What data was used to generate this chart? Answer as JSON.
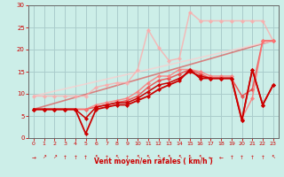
{
  "bg_color": "#cceee8",
  "grid_color": "#aacccc",
  "xlabel": "Vent moyen/en rafales ( km/h )",
  "xlabel_color": "#cc0000",
  "tick_color": "#cc0000",
  "axis_color": "#888888",
  "xlim": [
    -0.5,
    23.5
  ],
  "ylim": [
    0,
    30
  ],
  "yticks": [
    0,
    5,
    10,
    15,
    20,
    25,
    30
  ],
  "xticks": [
    0,
    1,
    2,
    3,
    4,
    5,
    6,
    7,
    8,
    9,
    10,
    11,
    12,
    13,
    14,
    15,
    16,
    17,
    18,
    19,
    20,
    21,
    22,
    23
  ],
  "lines": [
    {
      "x": [
        0,
        1,
        2,
        3,
        4,
        5,
        6,
        7,
        8,
        9,
        10,
        11,
        12,
        13,
        14,
        15,
        16,
        17,
        18,
        19,
        20,
        21,
        22,
        23
      ],
      "y": [
        6.5,
        6.5,
        6.5,
        6.5,
        6.5,
        1.0,
        6.5,
        7.0,
        7.5,
        7.5,
        8.5,
        9.5,
        11.0,
        12.0,
        13.0,
        15.5,
        13.5,
        13.5,
        13.5,
        13.5,
        4.0,
        15.5,
        7.5,
        12.0
      ],
      "color": "#cc0000",
      "lw": 1.3,
      "marker": "D",
      "ms": 2.2,
      "alpha": 1.0,
      "zorder": 5
    },
    {
      "x": [
        0,
        1,
        2,
        3,
        4,
        5,
        6,
        7,
        8,
        9,
        10,
        11,
        12,
        13,
        14,
        15,
        16,
        17,
        18,
        19,
        20,
        21,
        22,
        23
      ],
      "y": [
        6.5,
        6.5,
        6.5,
        6.5,
        6.5,
        4.5,
        7.0,
        7.5,
        8.0,
        8.0,
        9.0,
        10.5,
        12.0,
        12.5,
        13.5,
        15.0,
        14.0,
        13.5,
        13.5,
        13.5,
        4.0,
        15.5,
        7.5,
        12.0
      ],
      "color": "#cc0000",
      "lw": 1.1,
      "marker": "D",
      "ms": 2.2,
      "alpha": 1.0,
      "zorder": 5
    },
    {
      "x": [
        0,
        1,
        2,
        3,
        4,
        5,
        6,
        7,
        8,
        9,
        10,
        11,
        12,
        13,
        14,
        15,
        16,
        17,
        18,
        19,
        20,
        21,
        22,
        23
      ],
      "y": [
        6.5,
        6.5,
        6.5,
        6.5,
        6.5,
        6.5,
        7.0,
        7.5,
        8.0,
        8.5,
        9.5,
        11.5,
        13.0,
        13.5,
        14.5,
        15.5,
        14.5,
        13.5,
        13.5,
        13.5,
        9.5,
        11.0,
        22.0,
        22.0
      ],
      "color": "#ee4444",
      "lw": 1.1,
      "marker": "D",
      "ms": 2.2,
      "alpha": 0.85,
      "zorder": 4
    },
    {
      "x": [
        0,
        1,
        2,
        3,
        4,
        5,
        6,
        7,
        8,
        9,
        10,
        11,
        12,
        13,
        14,
        15,
        16,
        17,
        18,
        19,
        20,
        21,
        22,
        23
      ],
      "y": [
        6.5,
        6.5,
        6.5,
        6.5,
        6.5,
        6.5,
        7.5,
        8.0,
        8.5,
        9.0,
        10.5,
        12.5,
        14.0,
        14.0,
        15.5,
        15.5,
        15.0,
        14.0,
        14.0,
        14.0,
        4.5,
        9.0,
        22.0,
        22.0
      ],
      "color": "#ff7777",
      "lw": 1.1,
      "marker": "D",
      "ms": 2.2,
      "alpha": 0.8,
      "zorder": 4
    },
    {
      "x": [
        0,
        1,
        2,
        3,
        4,
        5,
        6,
        7,
        8,
        9,
        10,
        11,
        12,
        13,
        14,
        15,
        16,
        17,
        18,
        19,
        20,
        21,
        22,
        23
      ],
      "y": [
        9.5,
        9.5,
        9.5,
        9.5,
        9.5,
        9.5,
        11.5,
        12.0,
        12.5,
        12.5,
        15.5,
        24.5,
        20.5,
        17.5,
        18.0,
        28.5,
        26.5,
        26.5,
        26.5,
        26.5,
        26.5,
        26.5,
        26.5,
        22.0
      ],
      "color": "#ffaaaa",
      "lw": 1.1,
      "marker": "D",
      "ms": 2.2,
      "alpha": 0.75,
      "zorder": 3
    },
    {
      "x": [
        0,
        23
      ],
      "y": [
        6.5,
        22.0
      ],
      "color": "#dd5555",
      "lw": 1.2,
      "marker": null,
      "ms": 0,
      "alpha": 0.7,
      "zorder": 2
    },
    {
      "x": [
        0,
        23
      ],
      "y": [
        9.5,
        22.0
      ],
      "color": "#ffcccc",
      "lw": 1.2,
      "marker": null,
      "ms": 0,
      "alpha": 0.7,
      "zorder": 2
    }
  ],
  "arrow_chars": [
    "→",
    "↗",
    "↗",
    "↑",
    "↑",
    "↑",
    "↖",
    "↑",
    "↖",
    "↑",
    "↖",
    "↖",
    "↖",
    "↖",
    "↖",
    "↖",
    "↖",
    "←",
    "←",
    "↑",
    "↑",
    "↑",
    "↑",
    "↖"
  ]
}
